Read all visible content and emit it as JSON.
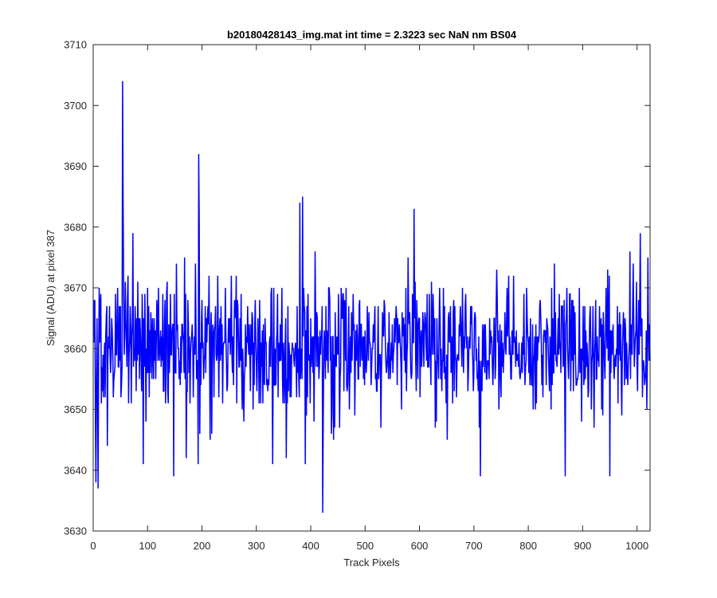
{
  "chart_data": {
    "type": "line",
    "title": "b20180428143_img.mat int time = 2.3223 sec  NaN nm BS04",
    "xlabel": "Track Pixels",
    "ylabel": "Signal (ADU) at pixel 387",
    "xlim": [
      0,
      1024
    ],
    "ylim": [
      3630,
      3710
    ],
    "xticks": [
      0,
      100,
      200,
      300,
      400,
      500,
      600,
      700,
      800,
      900,
      1000
    ],
    "yticks": [
      3630,
      3640,
      3650,
      3660,
      3670,
      3680,
      3690,
      3700,
      3710
    ],
    "grid": false,
    "legend": "none",
    "line_color": "#0000ff",
    "series": [
      {
        "x_start": 1,
        "x_step": 1,
        "mean": 3660,
        "std": 5.5,
        "n_points": 1024,
        "spikes": [
          {
            "x": 3,
            "y": 3668
          },
          {
            "x": 5,
            "y": 3638
          },
          {
            "x": 9,
            "y": 3637
          },
          {
            "x": 11,
            "y": 3670
          },
          {
            "x": 26,
            "y": 3644
          },
          {
            "x": 54,
            "y": 3704
          },
          {
            "x": 55,
            "y": 3684
          },
          {
            "x": 73,
            "y": 3679
          },
          {
            "x": 92,
            "y": 3641
          },
          {
            "x": 148,
            "y": 3639
          },
          {
            "x": 171,
            "y": 3642
          },
          {
            "x": 193,
            "y": 3641
          },
          {
            "x": 194,
            "y": 3692
          },
          {
            "x": 195,
            "y": 3680
          },
          {
            "x": 330,
            "y": 3641
          },
          {
            "x": 355,
            "y": 3642
          },
          {
            "x": 380,
            "y": 3684
          },
          {
            "x": 385,
            "y": 3685
          },
          {
            "x": 390,
            "y": 3641
          },
          {
            "x": 422,
            "y": 3633
          },
          {
            "x": 590,
            "y": 3683
          },
          {
            "x": 712,
            "y": 3639
          },
          {
            "x": 868,
            "y": 3639
          },
          {
            "x": 950,
            "y": 3639
          },
          {
            "x": 1006,
            "y": 3679
          },
          {
            "x": 1018,
            "y": 3650
          }
        ]
      }
    ]
  }
}
